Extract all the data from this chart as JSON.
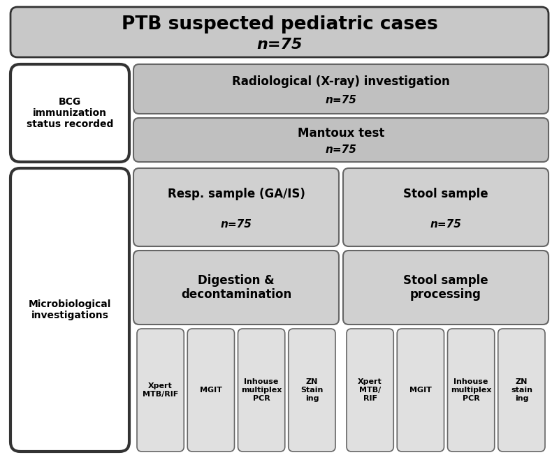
{
  "title_line1": "PTB suspected pediatric cases",
  "title_line2": "n=75",
  "fig_bg": "#ffffff",
  "bcg_text": "BCG\nimmunization\nstatus recorded",
  "radio_text_line1": "Radiological (X-ray) investigation",
  "radio_text_line2": "n=75",
  "mantoux_text_line1": "Mantoux test",
  "mantoux_text_line2": "n=75",
  "micro_text": "Microbiological\ninvestigations",
  "resp_text_line1": "Resp. sample (GA/IS)",
  "resp_text_line2": "n=75",
  "stool_text_line1": "Stool sample",
  "stool_text_line2": "n=75",
  "dig_text_line1": "Digestion &",
  "dig_text_line2": "decontamination",
  "stool_proc_line1": "Stool sample",
  "stool_proc_line2": "processing",
  "left_bottom_labels": [
    "Xpert\nMTB/RIF",
    "MGIT",
    "Inhouse\nmultiplex\nPCR",
    "ZN\nStain\ning"
  ],
  "right_bottom_labels": [
    "Xpert\nMTB/\nRIF",
    "MGIT",
    "Inhouse\nmultiplex\nPCR",
    "ZN\nstain\ning"
  ],
  "color_top": "#c8c8c8",
  "color_gray_dark": "#c0c0c0",
  "color_gray_mid": "#d0d0d0",
  "color_gray_light": "#e0e0e0",
  "color_white": "#ffffff",
  "edge_dark": "#333333",
  "edge_mid": "#666666",
  "edge_light": "#888888"
}
